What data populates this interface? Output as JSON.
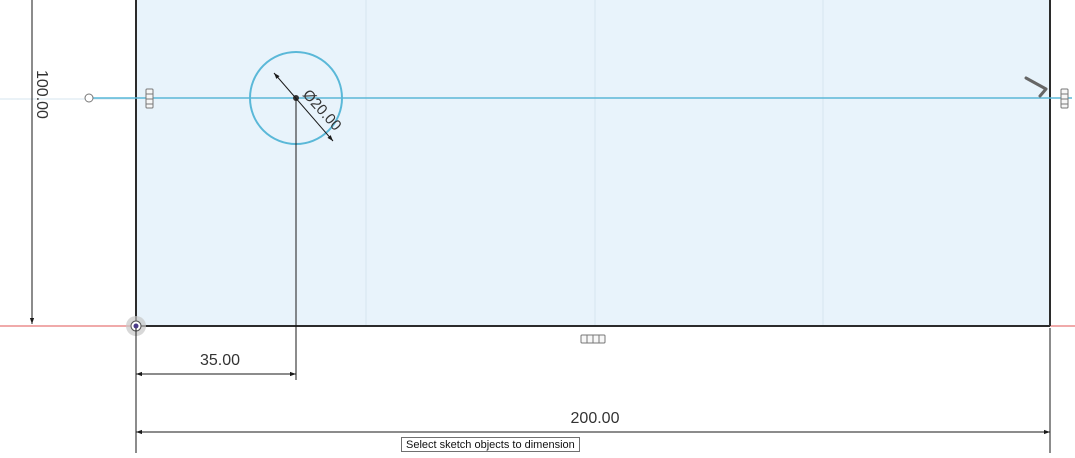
{
  "sketch": {
    "dimensions": {
      "width": "200.00",
      "height": "100.00",
      "hole_offset": "35.00",
      "hole_diameter": "Ø20.00"
    },
    "colors": {
      "profile_fill": "#e8f3fb",
      "profile_edge": "#2b2b2b",
      "construction_line": "#5ab8d8",
      "circle": "#5ab8d8",
      "x_axis": "#e05555",
      "grid": "#d6e6ef",
      "dimension_line": "#1a1a1a"
    },
    "icons": {
      "constraint": "horizontal-constraint-icon",
      "origin": "origin-point-icon"
    }
  },
  "status": {
    "tooltip": "Select sketch objects to dimension"
  }
}
